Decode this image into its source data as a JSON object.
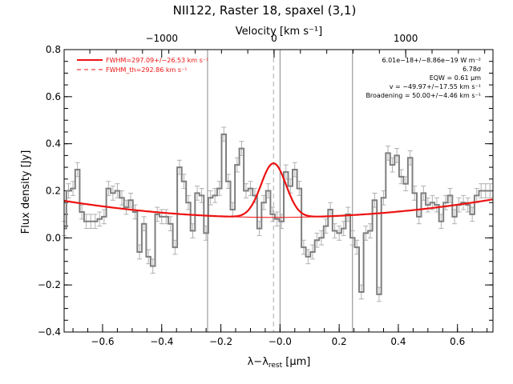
{
  "chart_data": {
    "type": "line",
    "title": "NII122, Raster 18, spaxel (3,1)",
    "xlabel": "λ−λ",
    "xlabel_sub": "rest",
    "xlabel_unit": " [μm]",
    "ylabel": "Flux density [Jy]",
    "top_axis_label": "Velocity [km s⁻¹]",
    "xlim": [
      -0.73,
      0.72
    ],
    "ylim": [
      -0.4,
      0.8
    ],
    "x_ticks": [
      -0.6,
      -0.4,
      -0.2,
      0.0,
      0.2,
      0.4,
      0.6
    ],
    "x_tick_labels": [
      "−0.6",
      "−0.4",
      "−0.2",
      "−0.0",
      "0.2",
      "0.4",
      "0.6"
    ],
    "y_ticks": [
      -0.4,
      -0.2,
      0.0,
      0.2,
      0.4,
      0.6,
      0.8
    ],
    "y_tick_labels": [
      "−0.4",
      "−0.2",
      "0.0",
      "0.2",
      "0.4",
      "0.6",
      "0.8"
    ],
    "velocity_ticks": [
      {
        "x": -0.4,
        "label": "−1000"
      },
      {
        "x": -0.02,
        "label": "0"
      },
      {
        "x": 0.425,
        "label": "1000"
      }
    ],
    "vertical_lines": [
      -0.245,
      0.0,
      0.245
    ],
    "dashed_line_x": -0.022,
    "spectrum": {
      "x": [
        -0.73,
        -0.715,
        -0.7,
        -0.685,
        -0.67,
        -0.655,
        -0.64,
        -0.625,
        -0.61,
        -0.595,
        -0.58,
        -0.565,
        -0.55,
        -0.535,
        -0.52,
        -0.505,
        -0.49,
        -0.475,
        -0.46,
        -0.445,
        -0.43,
        -0.415,
        -0.4,
        -0.385,
        -0.37,
        -0.355,
        -0.34,
        -0.325,
        -0.31,
        -0.295,
        -0.28,
        -0.265,
        -0.25,
        -0.235,
        -0.22,
        -0.205,
        -0.19,
        -0.175,
        -0.16,
        -0.145,
        -0.13,
        -0.115,
        -0.1,
        -0.085,
        -0.07,
        -0.055,
        -0.04,
        -0.025,
        -0.01,
        0.005,
        0.02,
        0.035,
        0.05,
        0.065,
        0.08,
        0.095,
        0.11,
        0.125,
        0.14,
        0.155,
        0.17,
        0.185,
        0.2,
        0.215,
        0.23,
        0.245,
        0.26,
        0.275,
        0.29,
        0.305,
        0.32,
        0.335,
        0.35,
        0.365,
        0.38,
        0.395,
        0.41,
        0.425,
        0.44,
        0.455,
        0.47,
        0.485,
        0.5,
        0.515,
        0.53,
        0.545,
        0.56,
        0.575,
        0.59,
        0.605,
        0.62,
        0.635,
        0.65,
        0.665,
        0.68,
        0.695,
        0.71
      ],
      "y": [
        0.04,
        0.2,
        0.21,
        0.29,
        0.11,
        0.07,
        0.07,
        0.07,
        0.08,
        0.09,
        0.21,
        0.19,
        0.2,
        0.17,
        0.13,
        0.16,
        0.11,
        -0.06,
        0.06,
        -0.08,
        -0.12,
        0.1,
        0.09,
        0.09,
        0.06,
        -0.04,
        0.3,
        0.24,
        0.15,
        0.03,
        0.19,
        0.18,
        0.02,
        0.17,
        0.18,
        0.21,
        0.44,
        0.24,
        0.12,
        0.31,
        0.38,
        0.2,
        0.21,
        0.18,
        0.04,
        0.15,
        0.2,
        0.1,
        0.08,
        0.07,
        0.28,
        0.22,
        0.29,
        0.21,
        -0.04,
        -0.08,
        -0.06,
        -0.01,
        0.0,
        0.05,
        0.12,
        0.03,
        0.02,
        0.04,
        0.1,
        0.0,
        -0.04,
        -0.23,
        0.02,
        0.03,
        0.16,
        -0.24,
        0.17,
        0.36,
        0.31,
        0.35,
        0.26,
        0.23,
        0.34,
        0.19,
        0.09,
        0.19,
        0.14,
        0.15,
        0.14,
        0.07,
        0.15,
        0.18,
        0.09,
        0.14,
        0.15,
        0.14,
        0.1,
        0.18,
        0.2,
        0.2,
        0.2
      ],
      "err": 0.03,
      "color": "#7f7f7f"
    },
    "fit": {
      "baseline": {
        "c": 0.087,
        "x0": -0.02,
        "a": 0.14
      },
      "gaussian": {
        "center": -0.022,
        "amplitude": 0.23,
        "sigma": 0.042
      },
      "color": "#ee1111"
    },
    "legend": [
      {
        "label": "FWHM=297.09+/−26.53 km s⁻¹",
        "style": "solid",
        "color": "#ee1111"
      },
      {
        "label": "FWHM_th=292.86 km s⁻¹",
        "style": "dashed",
        "color": "#ee1111"
      }
    ],
    "annotations": [
      "6.01e−18+/−8.86e−19 W m⁻²",
      "6.78σ",
      "EQW = 0.61 μm",
      "v = −49.97+/−17.55 km s⁻¹",
      "Broadening = 50.00+/−4.46 km s⁻¹"
    ]
  }
}
